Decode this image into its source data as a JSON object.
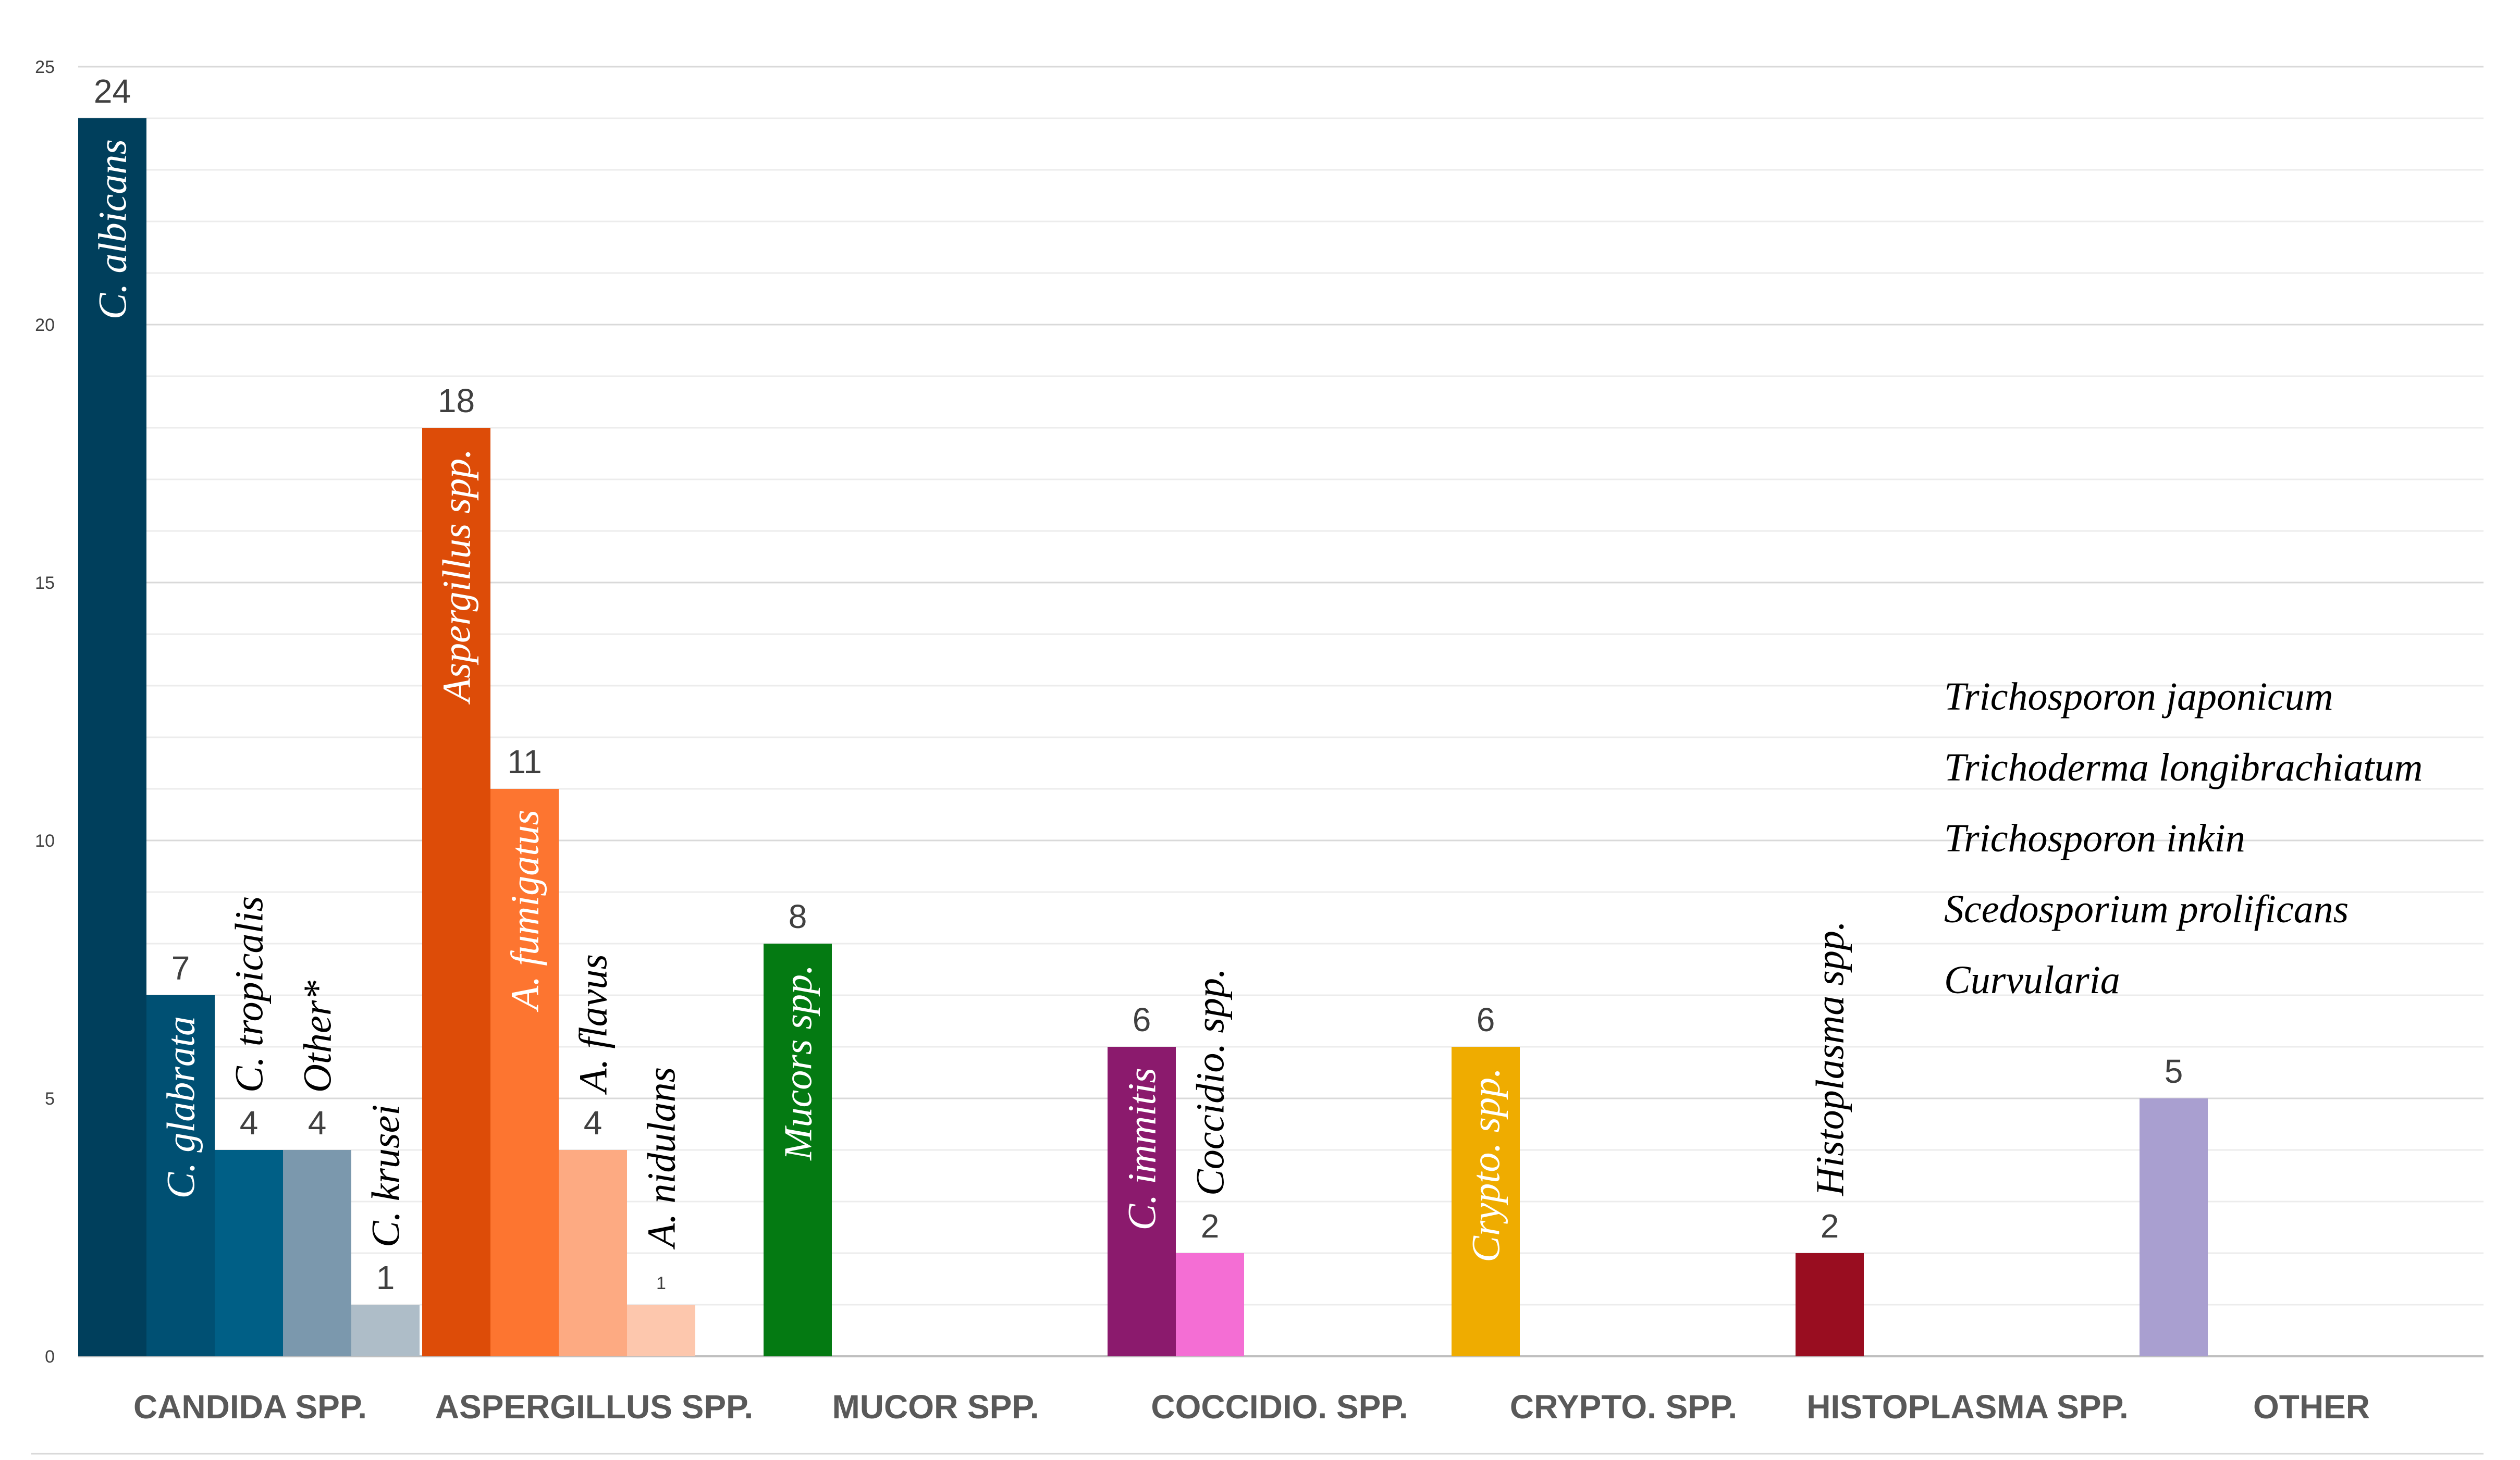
{
  "chart_data": {
    "type": "bar",
    "title": "",
    "xlabel": "",
    "ylabel": "",
    "ylim": [
      0,
      25
    ],
    "yticks": [
      0,
      5,
      10,
      15,
      20,
      25
    ],
    "minor_gridlines_every": 1,
    "categories": [
      "CANDIDA SPP.",
      "ASPERGILLUS SPP.",
      "MUCOR SPP.",
      "COCCIDIO. SPP.",
      "CRYPTO. SPP.",
      "HISTOPLASMA SPP.",
      "OTHER"
    ],
    "groups": [
      {
        "category": "CANDIDA SPP.",
        "bars": [
          {
            "species": "C. albicans",
            "value": 24,
            "label": "24",
            "color": "#003f5c",
            "species_inside": true,
            "species_color": "#ffffff"
          },
          {
            "species": "C. glabrata",
            "value": 7,
            "label": "7",
            "color": "#005073",
            "species_inside": true,
            "species_color": "#ffffff"
          },
          {
            "species": "C. tropicalis",
            "value": 4,
            "label": "4",
            "color": "#005f86",
            "species_inside": false,
            "species_color": "#000000"
          },
          {
            "species": "Other*",
            "value": 4,
            "label": "4",
            "color": "#7b98ad",
            "species_inside": false,
            "species_color": "#000000"
          },
          {
            "species": "C. krusei",
            "value": 1,
            "label": "1",
            "color": "#aebdc8",
            "species_inside": false,
            "species_color": "#000000"
          }
        ]
      },
      {
        "category": "ASPERGILLUS SPP.",
        "bars": [
          {
            "species": "Aspergillus spp.",
            "value": 18,
            "label": "18",
            "color": "#dd4c08",
            "species_inside": true,
            "species_color": "#ffffff"
          },
          {
            "species": "A. fumigatus",
            "value": 11,
            "label": "11",
            "color": "#fd7530",
            "species_inside": true,
            "species_color": "#ffffff"
          },
          {
            "species": "A. flavus",
            "value": 4,
            "label": "4",
            "color": "#fdaa82",
            "species_inside": false,
            "species_color": "#000000"
          },
          {
            "species": "A. nidulans",
            "value": 1,
            "label": "1",
            "color": "#fdc7ad",
            "species_inside": false,
            "species_color": "#000000",
            "small_label": true
          }
        ]
      },
      {
        "category": "MUCOR SPP.",
        "bars": [
          {
            "species": "Mucors spp.",
            "value": 8,
            "label": "8",
            "color": "#047a12",
            "species_inside": true,
            "species_color": "#ffffff"
          }
        ]
      },
      {
        "category": "COCCIDIO. SPP.",
        "bars": [
          {
            "species": "C. immitis",
            "value": 6,
            "label": "6",
            "color": "#8b1a6d",
            "species_inside": true,
            "species_color": "#ffffff"
          },
          {
            "species": "Coccidio. spp.",
            "value": 2,
            "label": "2",
            "color": "#f46ed4",
            "species_inside": false,
            "species_color": "#000000"
          }
        ]
      },
      {
        "category": "CRYPTO. SPP.",
        "bars": [
          {
            "species": "Crypto. spp.",
            "value": 6,
            "label": "6",
            "color": "#efac00",
            "species_inside": true,
            "species_color": "#ffffff"
          }
        ]
      },
      {
        "category": "HISTOPLASMA SPP.",
        "bars": [
          {
            "species": "Histoplasma spp.",
            "value": 2,
            "label": "2",
            "color": "#990d20",
            "species_inside": false,
            "species_color": "#000000"
          }
        ]
      },
      {
        "category": "OTHER",
        "bars": [
          {
            "species": "",
            "value": 5,
            "label": "5",
            "color": "#a99fd0",
            "species_inside": false,
            "species_color": "#000000"
          }
        ]
      }
    ],
    "annotations": [
      "Trichosporon japonicum",
      "Trichoderma longibrachiatum",
      "Trichosporon inkin",
      "Scedosporium prolificans",
      "Curvularia"
    ]
  }
}
